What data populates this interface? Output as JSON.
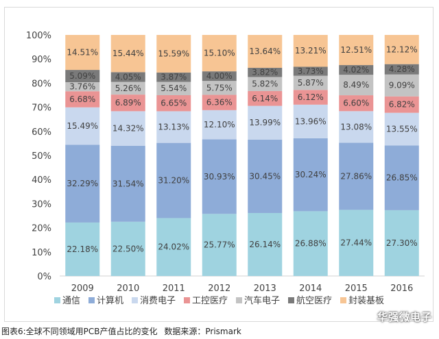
{
  "caption": {
    "title": "图表6:全球不同领域用PCB产值占比的变化",
    "source": "数据来源：Prismark"
  },
  "watermark": "华强微电子",
  "chart_data": {
    "type": "bar",
    "stacked": true,
    "percent": true,
    "categories": [
      "2009",
      "2010",
      "2011",
      "2012",
      "2013",
      "2014",
      "2015",
      "2016"
    ],
    "ylim": [
      0,
      100
    ],
    "yticks": [
      "0%",
      "10%",
      "20%",
      "30%",
      "40%",
      "50%",
      "60%",
      "70%",
      "80%",
      "90%",
      "100%"
    ],
    "grid": false,
    "legend_position": "bottom",
    "series": [
      {
        "name": "通信",
        "color": "#9fd3e0",
        "values": [
          22.18,
          22.5,
          24.02,
          25.77,
          26.14,
          26.88,
          27.44,
          27.3
        ],
        "labels": [
          "22.18%",
          "22.50%",
          "24.02%",
          "25.77%",
          "26.14%",
          "26.88%",
          "27.44%",
          "27.30%"
        ]
      },
      {
        "name": "计算机",
        "color": "#8eacd8",
        "values": [
          32.29,
          31.54,
          31.2,
          30.93,
          30.45,
          30.24,
          27.86,
          26.85
        ],
        "labels": [
          "32.29%",
          "31.54%",
          "31.20%",
          "30.93%",
          "30.45%",
          "30.24%",
          "27.86%",
          "26.85%"
        ]
      },
      {
        "name": "消费电子",
        "color": "#c9d8ee",
        "values": [
          15.49,
          14.32,
          13.13,
          12.1,
          13.99,
          13.96,
          13.08,
          13.55
        ],
        "labels": [
          "15.49%",
          "14.32%",
          "13.13%",
          "12.10%",
          "13.99%",
          "13.96%",
          "13.08%",
          "13.55%"
        ]
      },
      {
        "name": "工控医疗",
        "color": "#ea9494",
        "values": [
          6.68,
          6.89,
          6.65,
          6.36,
          6.14,
          6.12,
          6.6,
          6.82
        ],
        "labels": [
          "6.68%",
          "6.89%",
          "6.65%",
          "6.36%",
          "6.14%",
          "6.12%",
          "6.60%",
          "6.82%"
        ]
      },
      {
        "name": "汽车电子",
        "color": "#c3c3c3",
        "values": [
          3.76,
          5.26,
          5.54,
          5.75,
          5.82,
          5.87,
          8.49,
          9.09
        ],
        "labels": [
          "3.76%",
          "5.26%",
          "5.54%",
          "5.75%",
          "5.82%",
          "5.87%",
          "8.49%",
          "9.09%"
        ]
      },
      {
        "name": "航空医疗",
        "color": "#7a7a7a",
        "values": [
          5.09,
          4.05,
          3.87,
          4.0,
          3.82,
          3.73,
          4.02,
          4.28
        ],
        "labels": [
          "5.09%",
          "4.05%",
          "3.87%",
          "4.00%",
          "3.82%",
          "3.73%",
          "4.02%",
          "4.28%"
        ]
      },
      {
        "name": "封装基板",
        "color": "#f7c594",
        "values": [
          14.51,
          15.44,
          15.59,
          15.1,
          13.64,
          13.21,
          12.51,
          12.12
        ],
        "labels": [
          "14.51%",
          "15.44%",
          "15.59%",
          "15.10%",
          "13.64%",
          "13.21%",
          "12.51%",
          "12.12%"
        ]
      }
    ]
  }
}
